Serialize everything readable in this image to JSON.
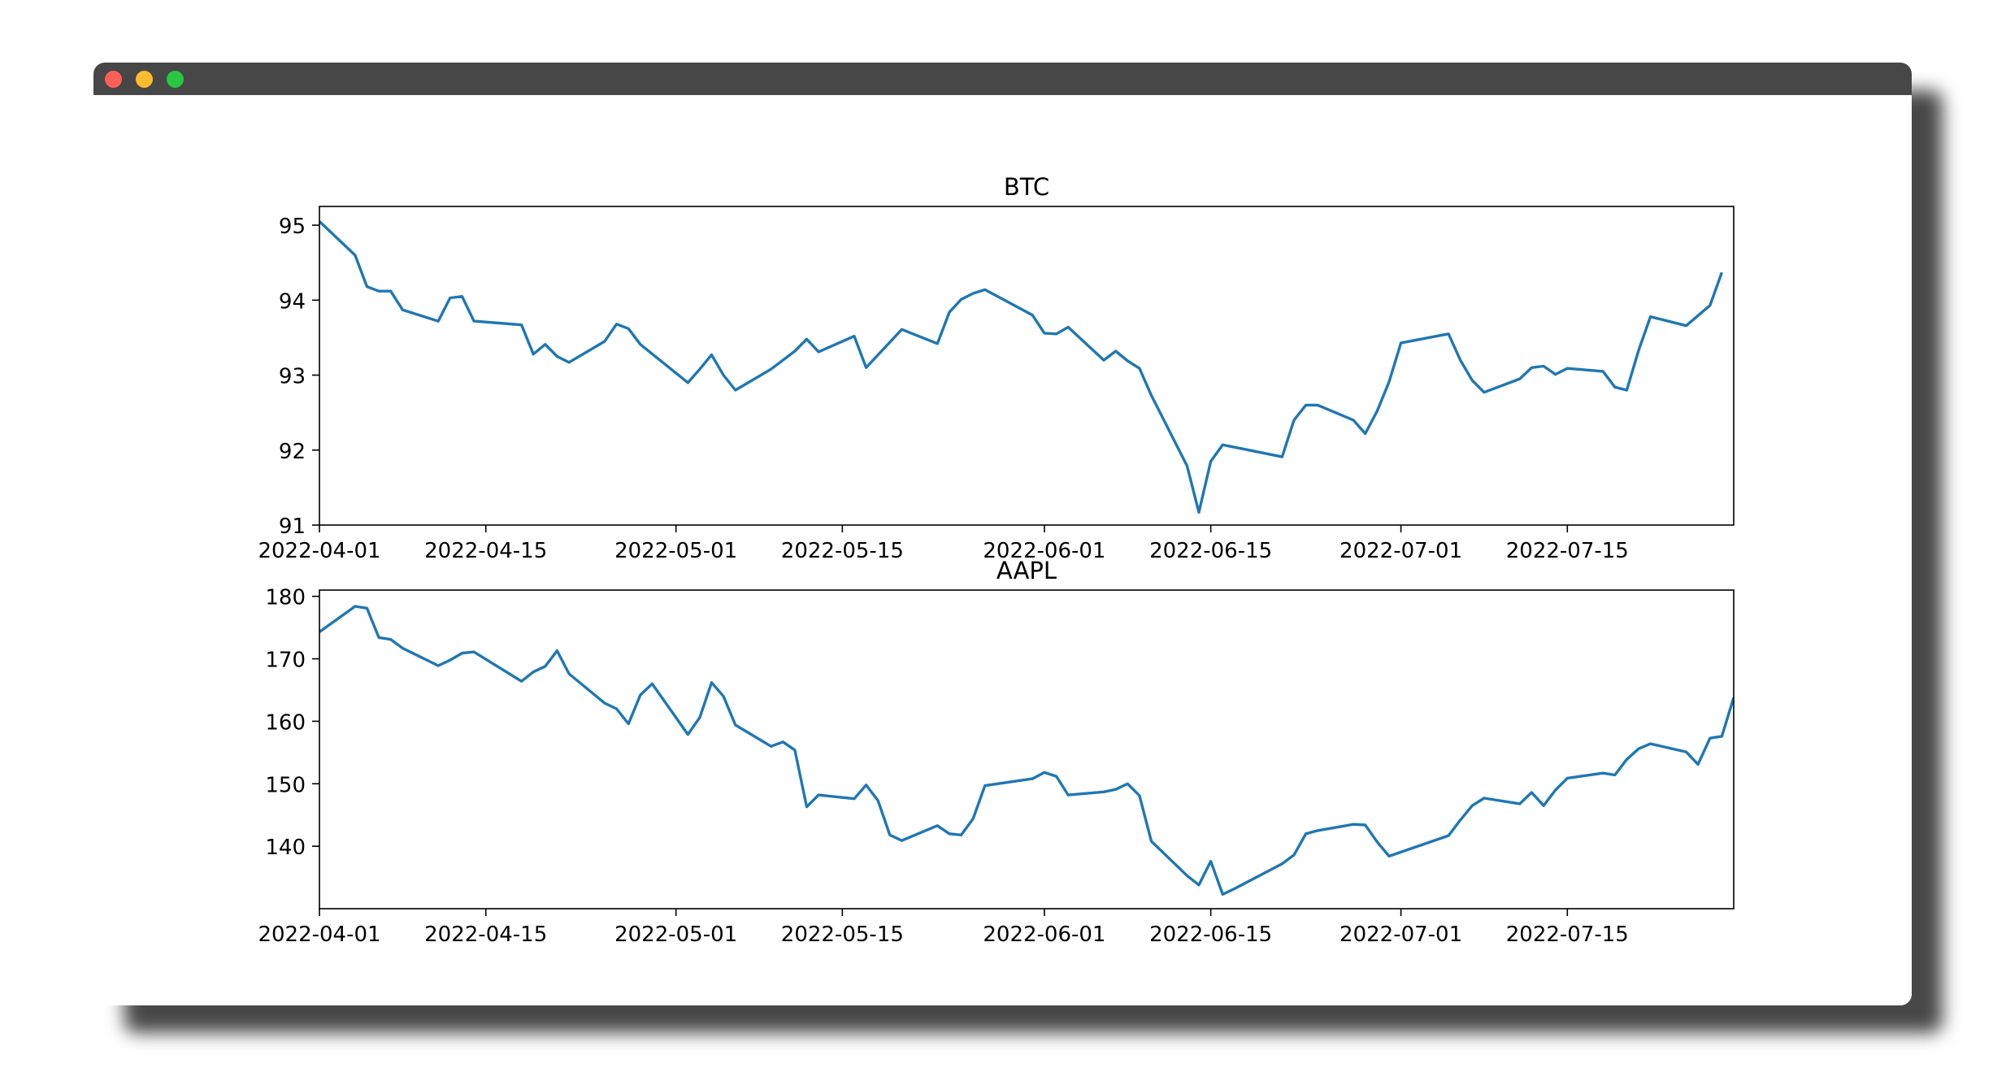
{
  "window": {
    "controls": [
      {
        "name": "close",
        "color": "#fe5f57"
      },
      {
        "name": "minimize",
        "color": "#febc2e"
      },
      {
        "name": "zoom",
        "color": "#28c840"
      }
    ]
  },
  "line_color": "#1f77b4",
  "chart_data": [
    {
      "type": "line",
      "title": "BTC",
      "xlabel": "",
      "ylabel": "",
      "xlim": [
        "2022-04-01",
        "2022-07-29"
      ],
      "ylim": [
        91,
        95.25
      ],
      "yticks": [
        91,
        92,
        93,
        94,
        95
      ],
      "xticks": [
        "2022-04-01",
        "2022-04-15",
        "2022-05-01",
        "2022-05-15",
        "2022-06-01",
        "2022-06-15",
        "2022-07-01",
        "2022-07-15"
      ],
      "grid": false,
      "series": [
        {
          "points": [
            [
              "2022-04-01",
              95.05
            ],
            [
              "2022-04-04",
              94.6
            ],
            [
              "2022-04-05",
              94.18
            ],
            [
              "2022-04-06",
              94.12
            ],
            [
              "2022-04-07",
              94.12
            ],
            [
              "2022-04-08",
              93.87
            ],
            [
              "2022-04-11",
              93.72
            ],
            [
              "2022-04-12",
              94.03
            ],
            [
              "2022-04-13",
              94.05
            ],
            [
              "2022-04-14",
              93.72
            ],
            [
              "2022-04-18",
              93.67
            ],
            [
              "2022-04-19",
              93.28
            ],
            [
              "2022-04-20",
              93.41
            ],
            [
              "2022-04-21",
              93.25
            ],
            [
              "2022-04-22",
              93.17
            ],
            [
              "2022-04-25",
              93.45
            ],
            [
              "2022-04-26",
              93.68
            ],
            [
              "2022-04-27",
              93.62
            ],
            [
              "2022-04-28",
              93.41
            ],
            [
              "2022-05-02",
              92.9
            ],
            [
              "2022-05-03",
              93.08
            ],
            [
              "2022-05-04",
              93.27
            ],
            [
              "2022-05-05",
              93.0
            ],
            [
              "2022-05-06",
              92.8
            ],
            [
              "2022-05-09",
              93.08
            ],
            [
              "2022-05-11",
              93.32
            ],
            [
              "2022-05-12",
              93.48
            ],
            [
              "2022-05-13",
              93.31
            ],
            [
              "2022-05-16",
              93.52
            ],
            [
              "2022-05-17",
              93.1
            ],
            [
              "2022-05-18",
              93.27
            ],
            [
              "2022-05-20",
              93.61
            ],
            [
              "2022-05-23",
              93.42
            ],
            [
              "2022-05-24",
              93.84
            ],
            [
              "2022-05-25",
              94.01
            ],
            [
              "2022-05-26",
              94.09
            ],
            [
              "2022-05-27",
              94.14
            ],
            [
              "2022-05-31",
              93.8
            ],
            [
              "2022-06-01",
              93.56
            ],
            [
              "2022-06-02",
              93.55
            ],
            [
              "2022-06-03",
              93.64
            ],
            [
              "2022-06-06",
              93.2
            ],
            [
              "2022-06-07",
              93.32
            ],
            [
              "2022-06-08",
              93.19
            ],
            [
              "2022-06-09",
              93.09
            ],
            [
              "2022-06-10",
              92.73
            ],
            [
              "2022-06-13",
              91.79
            ],
            [
              "2022-06-14",
              91.17
            ],
            [
              "2022-06-15",
              91.85
            ],
            [
              "2022-06-16",
              92.07
            ],
            [
              "2022-06-21",
              91.91
            ],
            [
              "2022-06-22",
              92.4
            ],
            [
              "2022-06-23",
              92.6
            ],
            [
              "2022-06-24",
              92.6
            ],
            [
              "2022-06-27",
              92.4
            ],
            [
              "2022-06-28",
              92.22
            ],
            [
              "2022-06-29",
              92.52
            ],
            [
              "2022-06-30",
              92.91
            ],
            [
              "2022-07-01",
              93.43
            ],
            [
              "2022-07-05",
              93.55
            ],
            [
              "2022-07-06",
              93.2
            ],
            [
              "2022-07-07",
              92.93
            ],
            [
              "2022-07-08",
              92.77
            ],
            [
              "2022-07-11",
              92.95
            ],
            [
              "2022-07-12",
              93.1
            ],
            [
              "2022-07-13",
              93.12
            ],
            [
              "2022-07-14",
              93.01
            ],
            [
              "2022-07-15",
              93.09
            ],
            [
              "2022-07-18",
              93.05
            ],
            [
              "2022-07-19",
              92.84
            ],
            [
              "2022-07-20",
              92.8
            ],
            [
              "2022-07-21",
              93.33
            ],
            [
              "2022-07-22",
              93.78
            ],
            [
              "2022-07-25",
              93.66
            ],
            [
              "2022-07-27",
              93.93
            ],
            [
              "2022-07-28",
              94.37
            ]
          ]
        }
      ]
    },
    {
      "type": "line",
      "title": "AAPL",
      "xlabel": "",
      "ylabel": "",
      "xlim": [
        "2022-04-01",
        "2022-07-29"
      ],
      "ylim": [
        130,
        181
      ],
      "yticks": [
        140,
        150,
        160,
        170,
        180
      ],
      "xticks": [
        "2022-04-01",
        "2022-04-15",
        "2022-05-01",
        "2022-05-15",
        "2022-06-01",
        "2022-06-15",
        "2022-07-01",
        "2022-07-15"
      ],
      "grid": false,
      "series": [
        {
          "points": [
            [
              "2022-04-01",
              174.3
            ],
            [
              "2022-04-04",
              178.4
            ],
            [
              "2022-04-05",
              178.1
            ],
            [
              "2022-04-06",
              173.4
            ],
            [
              "2022-04-07",
              173.1
            ],
            [
              "2022-04-08",
              171.7
            ],
            [
              "2022-04-11",
              168.9
            ],
            [
              "2022-04-12",
              169.8
            ],
            [
              "2022-04-13",
              170.9
            ],
            [
              "2022-04-14",
              171.1
            ],
            [
              "2022-04-18",
              166.4
            ],
            [
              "2022-04-19",
              167.9
            ],
            [
              "2022-04-20",
              168.8
            ],
            [
              "2022-04-21",
              171.3
            ],
            [
              "2022-04-22",
              167.6
            ],
            [
              "2022-04-25",
              162.9
            ],
            [
              "2022-04-26",
              162.0
            ],
            [
              "2022-04-27",
              159.6
            ],
            [
              "2022-04-28",
              164.2
            ],
            [
              "2022-04-29",
              166.0
            ],
            [
              "2022-05-02",
              157.9
            ],
            [
              "2022-05-03",
              160.6
            ],
            [
              "2022-05-04",
              166.2
            ],
            [
              "2022-05-05",
              164.0
            ],
            [
              "2022-05-06",
              159.4
            ],
            [
              "2022-05-09",
              156.0
            ],
            [
              "2022-05-10",
              156.7
            ],
            [
              "2022-05-11",
              155.4
            ],
            [
              "2022-05-12",
              146.3
            ],
            [
              "2022-05-13",
              148.2
            ],
            [
              "2022-05-16",
              147.6
            ],
            [
              "2022-05-17",
              149.8
            ],
            [
              "2022-05-18",
              147.3
            ],
            [
              "2022-05-19",
              141.8
            ],
            [
              "2022-05-20",
              140.9
            ],
            [
              "2022-05-23",
              143.3
            ],
            [
              "2022-05-24",
              142.0
            ],
            [
              "2022-05-25",
              141.8
            ],
            [
              "2022-05-26",
              144.4
            ],
            [
              "2022-05-27",
              149.7
            ],
            [
              "2022-05-31",
              150.8
            ],
            [
              "2022-06-01",
              151.8
            ],
            [
              "2022-06-02",
              151.2
            ],
            [
              "2022-06-03",
              148.2
            ],
            [
              "2022-06-06",
              148.7
            ],
            [
              "2022-06-07",
              149.1
            ],
            [
              "2022-06-08",
              150.0
            ],
            [
              "2022-06-09",
              148.1
            ],
            [
              "2022-06-10",
              140.8
            ],
            [
              "2022-06-13",
              135.3
            ],
            [
              "2022-06-14",
              133.8
            ],
            [
              "2022-06-15",
              137.6
            ],
            [
              "2022-06-16",
              132.3
            ],
            [
              "2022-06-17",
              133.2
            ],
            [
              "2022-06-21",
              137.2
            ],
            [
              "2022-06-22",
              138.6
            ],
            [
              "2022-06-23",
              142.0
            ],
            [
              "2022-06-24",
              142.5
            ],
            [
              "2022-06-27",
              143.5
            ],
            [
              "2022-06-28",
              143.4
            ],
            [
              "2022-06-29",
              140.7
            ],
            [
              "2022-06-30",
              138.4
            ],
            [
              "2022-07-05",
              141.7
            ],
            [
              "2022-07-06",
              144.2
            ],
            [
              "2022-07-07",
              146.5
            ],
            [
              "2022-07-08",
              147.7
            ],
            [
              "2022-07-11",
              146.8
            ],
            [
              "2022-07-12",
              148.6
            ],
            [
              "2022-07-13",
              146.5
            ],
            [
              "2022-07-14",
              149.0
            ],
            [
              "2022-07-15",
              150.9
            ],
            [
              "2022-07-18",
              151.7
            ],
            [
              "2022-07-19",
              151.4
            ],
            [
              "2022-07-20",
              153.9
            ],
            [
              "2022-07-21",
              155.6
            ],
            [
              "2022-07-22",
              156.4
            ],
            [
              "2022-07-25",
              155.1
            ],
            [
              "2022-07-26",
              153.1
            ],
            [
              "2022-07-27",
              157.3
            ],
            [
              "2022-07-28",
              157.6
            ],
            [
              "2022-07-29",
              163.8
            ]
          ]
        }
      ]
    }
  ]
}
